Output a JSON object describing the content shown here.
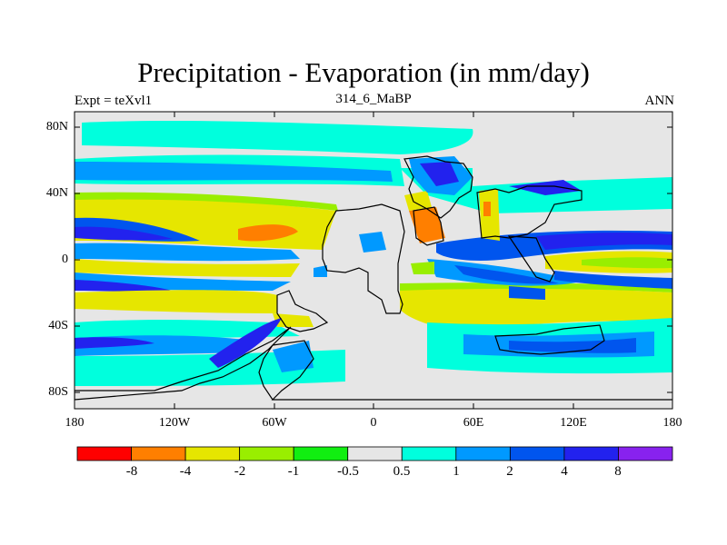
{
  "header": {
    "title": "Precipitation - Evaporation (in mm/day)",
    "left": "Expt = teXvl1",
    "center": "314_6_MaBP",
    "right": "ANN"
  },
  "map": {
    "lat_labels": [
      "80N",
      "40N",
      "0",
      "40S",
      "80S"
    ],
    "lon_labels": [
      "180",
      "120W",
      "60W",
      "0",
      "60E",
      "120E",
      "180"
    ]
  },
  "colorbar": {
    "colors": [
      "#ff0000",
      "#ff7f00",
      "#e6e600",
      "#99ee00",
      "#11ee11",
      "#e6e6e6",
      "#00ffdd",
      "#0099ff",
      "#0055ee",
      "#2222ee",
      "#8822ee"
    ],
    "labels": [
      "-8",
      "-4",
      "-2",
      "-1",
      "-0.5",
      "0.5",
      "1",
      "2",
      "4",
      "8"
    ]
  }
}
